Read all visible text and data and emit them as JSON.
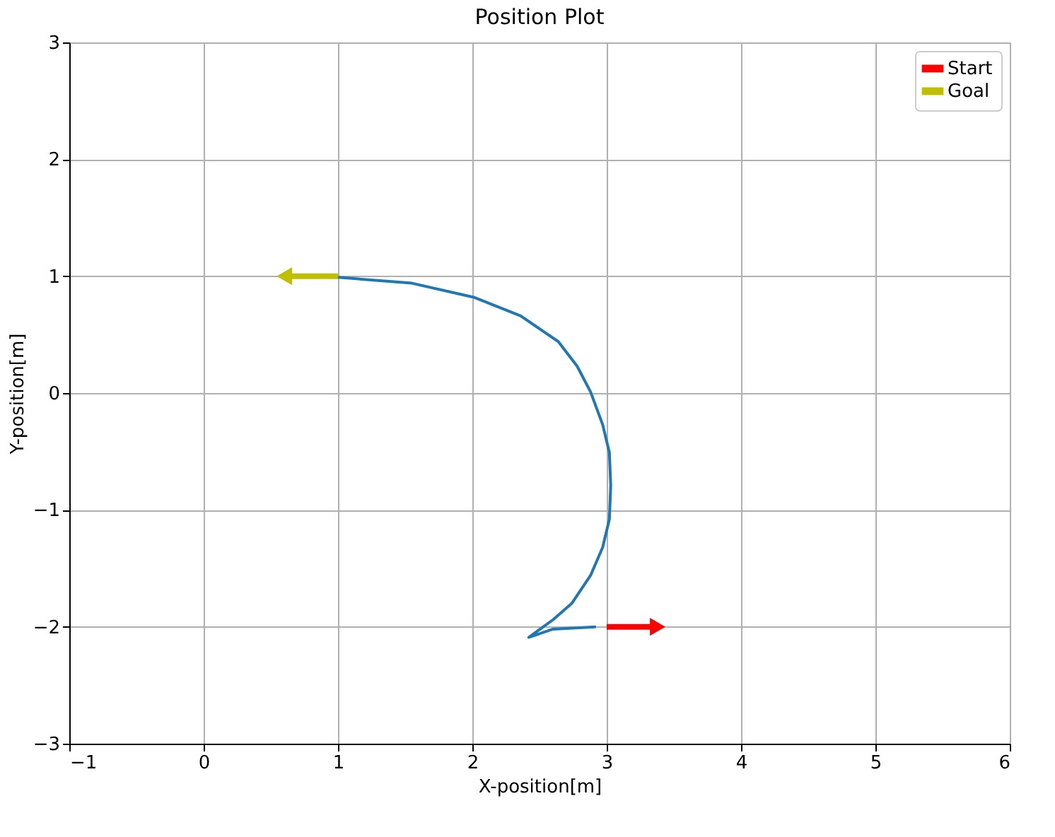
{
  "chart_data": {
    "type": "line",
    "title": "Position Plot",
    "xlabel": "X-position[m]",
    "ylabel": "Y-position[m]",
    "xlim": [
      -1,
      6
    ],
    "xticks": [
      -1,
      0,
      1,
      2,
      3,
      4,
      5,
      6
    ],
    "ylim": [
      -3,
      3
    ],
    "yticks": [
      -3,
      -2,
      -1,
      0,
      1,
      2,
      3
    ],
    "grid": true,
    "legend": "top right",
    "marker": "none",
    "line_style": "solid",
    "series": [
      {
        "color": "#1f77b4",
        "x": [
          2.92,
          2.6,
          2.42,
          2.6,
          2.74,
          2.88,
          2.97,
          3.02,
          3.03,
          3.02,
          2.97,
          2.88,
          2.78,
          2.64,
          2.36,
          2.01,
          1.55,
          1.0
        ],
        "values": [
          -2.0,
          -2.02,
          -2.09,
          -1.94,
          -1.8,
          -1.56,
          -1.32,
          -1.08,
          -0.79,
          -0.51,
          -0.27,
          0.01,
          0.23,
          0.44,
          0.66,
          0.82,
          0.94,
          0.99
        ]
      },
      {
        "name": "Start",
        "type": "line",
        "marker": "triangle",
        "color": "#ff0000",
        "x": [
          3.0,
          3.36
        ],
        "values": [
          -2.0,
          -2.0
        ]
      },
      {
        "name": "Goal",
        "type": "line",
        "marker": "triangle",
        "color": "#bfbf00",
        "x": [
          1.0,
          0.62
        ],
        "values": [
          1.0,
          1.0
        ]
      }
    ]
  }
}
